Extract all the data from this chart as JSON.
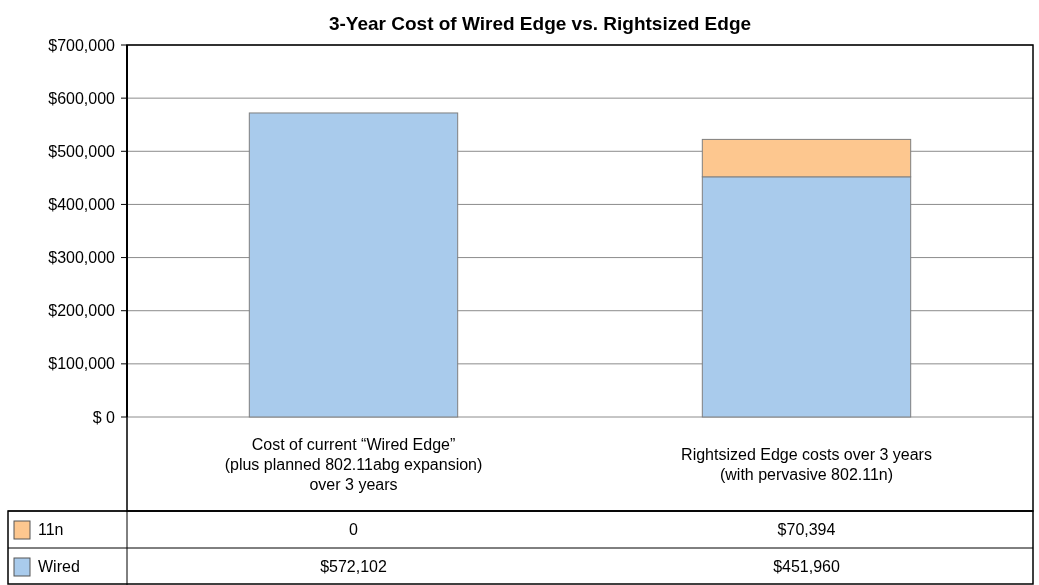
{
  "chart_data": {
    "type": "bar",
    "title": "3-Year Cost of Wired Edge vs. Rightsized Edge",
    "categories": [
      "Cost of current “Wired Edge”\n(plus planned 802.11abg expansion)\nover 3 years",
      "Rightsized Edge costs over 3 years\n(with pervasive 802.11n)"
    ],
    "stacked": true,
    "series": [
      {
        "name": "Wired",
        "color": "#a9cbec",
        "values": [
          572102,
          451960
        ],
        "value_labels": [
          "$572,102",
          "$451,960"
        ]
      },
      {
        "name": "11n",
        "color": "#fdc78f",
        "values": [
          0,
          70394
        ],
        "value_labels": [
          "0",
          "$70,394"
        ]
      }
    ],
    "ylim": [
      0,
      700000
    ],
    "yticks": [
      {
        "value": 0,
        "label": "$ 0"
      },
      {
        "value": 100000,
        "label": "$100,000"
      },
      {
        "value": 200000,
        "label": "$200,000"
      },
      {
        "value": 300000,
        "label": "$300,000"
      },
      {
        "value": 400000,
        "label": "$400,000"
      },
      {
        "value": 500000,
        "label": "$500,000"
      },
      {
        "value": 600000,
        "label": "$600,000"
      },
      {
        "value": 700000,
        "label": "$700,000"
      }
    ],
    "grid": "y",
    "legend": "bottom"
  }
}
